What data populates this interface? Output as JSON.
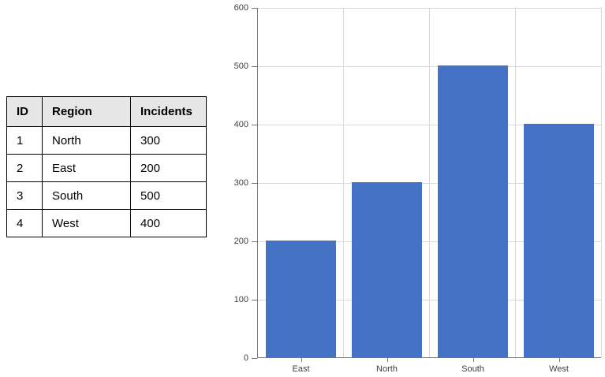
{
  "table": {
    "columns": [
      "ID",
      "Region",
      "Incidents"
    ],
    "rows": [
      [
        "1",
        "North",
        "300"
      ],
      [
        "2",
        "East",
        "200"
      ],
      [
        "3",
        "South",
        "500"
      ],
      [
        "4",
        "West",
        "400"
      ]
    ]
  },
  "chart_data": {
    "type": "bar",
    "categories": [
      "East",
      "North",
      "South",
      "West"
    ],
    "values": [
      200,
      300,
      500,
      400
    ],
    "title": "",
    "xlabel": "",
    "ylabel": "",
    "ylim": [
      0,
      600
    ],
    "ytick_step": 100,
    "ytick_labels": [
      "0",
      "100",
      "200",
      "300",
      "400",
      "500",
      "600"
    ],
    "grid": true,
    "legend": "none",
    "bar_color": "#4472C4",
    "gridline_color": "#D9D9D9",
    "axis_color": "#747474",
    "tick_label_color": "#3F3F3F"
  },
  "colors": {
    "table_header_bg": "#E7E6E6",
    "table_border": "#000000",
    "background": "#FFFFFF"
  }
}
